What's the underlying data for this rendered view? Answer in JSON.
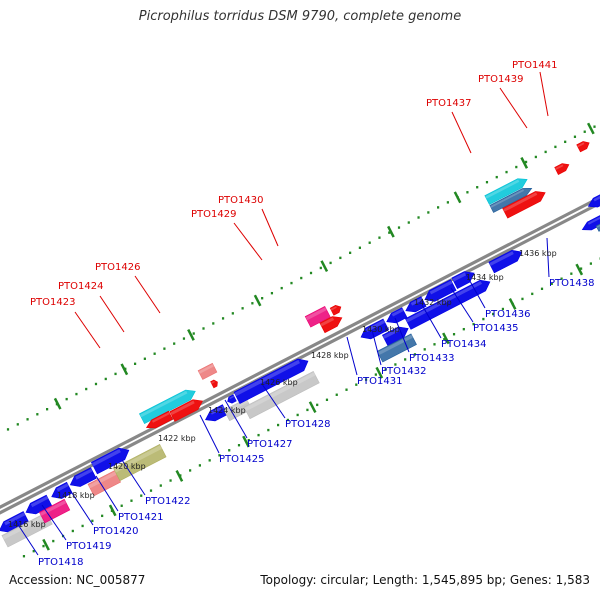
{
  "title": "Picrophilus torridus DSM 9790, complete genome",
  "footer": {
    "accession": "Accession: NC_005877",
    "summary": "Topology: circular; Length: 1,545,895 bp; Genes: 1,583"
  },
  "colors": {
    "blue_cds": "#1010e8",
    "red_cds": "#ee1111",
    "cyan_cds": "#22ccdd",
    "steel_cds": "#4477aa",
    "pink_cds": "#ee2288",
    "salmon_cds": "#ee8888",
    "olive_cds": "#bbbb77",
    "grey_cds": "#c8c8c8",
    "backbone": "#888888",
    "dots": "#228822",
    "label_top": "#dd0000",
    "label_bottom": "#0000cc"
  },
  "ticks": [
    "1416 kbp",
    "1418 kbp",
    "1420 kbp",
    "1422 kbp",
    "1424 kbp",
    "1426 kbp",
    "1428 kbp",
    "1430 kbp",
    "1432 kbp",
    "1434 kbp",
    "1436 kbp"
  ],
  "top_labels": [
    "PTO1423",
    "PTO1424",
    "PTO1426",
    "PTO1429",
    "PTO1430",
    "PTO1437",
    "PTO1439",
    "PTO1441"
  ],
  "bottom_labels": [
    "PTO1418",
    "PTO1419",
    "PTO1420",
    "PTO1421",
    "PTO1422",
    "PTO1425",
    "PTO1427",
    "PTO1428",
    "PTO1431",
    "PTO1432",
    "PTO1433",
    "PTO1434",
    "PTO1435",
    "PTO1436",
    "PTO1438"
  ]
}
